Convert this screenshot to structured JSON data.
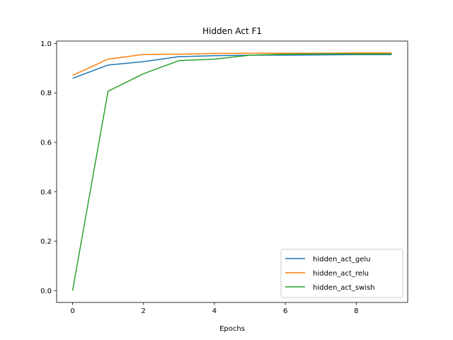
{
  "chart_data": {
    "type": "line",
    "title": "Hidden Act F1",
    "xlabel": "Epochs",
    "ylabel": "",
    "xlim": [
      -0.45,
      9.45
    ],
    "ylim": [
      -0.048,
      1.01
    ],
    "x_ticks": [
      0,
      2,
      4,
      6,
      8
    ],
    "y_ticks": [
      0.0,
      0.2,
      0.4,
      0.6,
      0.8,
      1.0
    ],
    "x_tick_labels": [
      "0",
      "2",
      "4",
      "6",
      "8"
    ],
    "y_tick_labels": [
      "0.0",
      "0.2",
      "0.4",
      "0.6",
      "0.8",
      "1.0"
    ],
    "grid": false,
    "legend_position": "lower-right",
    "x": [
      0,
      1,
      2,
      3,
      4,
      5,
      6,
      7,
      8,
      9
    ],
    "series": [
      {
        "name": "hidden_act_gelu",
        "color": "#1f77b4",
        "values": [
          0.859,
          0.913,
          0.927,
          0.947,
          0.951,
          0.953,
          0.953,
          0.954,
          0.955,
          0.955
        ]
      },
      {
        "name": "hidden_act_relu",
        "color": "#ff7f0e",
        "values": [
          0.871,
          0.937,
          0.956,
          0.957,
          0.96,
          0.961,
          0.961,
          0.961,
          0.962,
          0.962
        ]
      },
      {
        "name": "hidden_act_swish",
        "color": "#2ca02c",
        "values": [
          0.0,
          0.807,
          0.878,
          0.931,
          0.937,
          0.953,
          0.957,
          0.958,
          0.958,
          0.958
        ]
      }
    ]
  }
}
